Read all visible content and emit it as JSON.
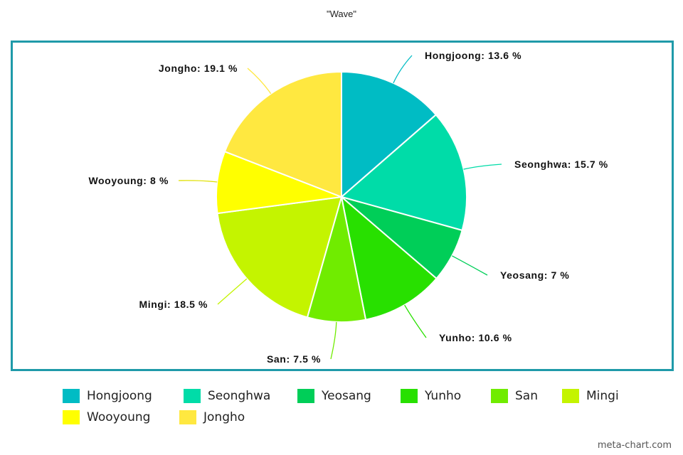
{
  "chart_data": {
    "type": "pie",
    "title": "\"Wave\"",
    "categories": [
      "Hongjoong",
      "Seonghwa",
      "Yeosang",
      "Yunho",
      "San",
      "Mingi",
      "Wooyoung",
      "Jongho"
    ],
    "values": [
      13.6,
      15.7,
      7,
      10.6,
      7.5,
      18.5,
      8,
      19.1
    ],
    "data_labels": [
      "Hongjoong: 13.6 %",
      "Seonghwa: 15.7 %",
      "Yeosang: 7 %",
      "Yunho: 10.6 %",
      "San: 7.5 %",
      "Mingi: 18.5 %",
      "Wooyoung: 8 %",
      "Jongho: 19.1 %"
    ],
    "colors": [
      "#00bcc4",
      "#00dca8",
      "#00ce58",
      "#28e000",
      "#70ec00",
      "#c4f400",
      "#ffff00",
      "#ffe840"
    ],
    "legend_position": "bottom",
    "border_color": "#1f9aa9"
  },
  "watermark": "meta-chart.com"
}
